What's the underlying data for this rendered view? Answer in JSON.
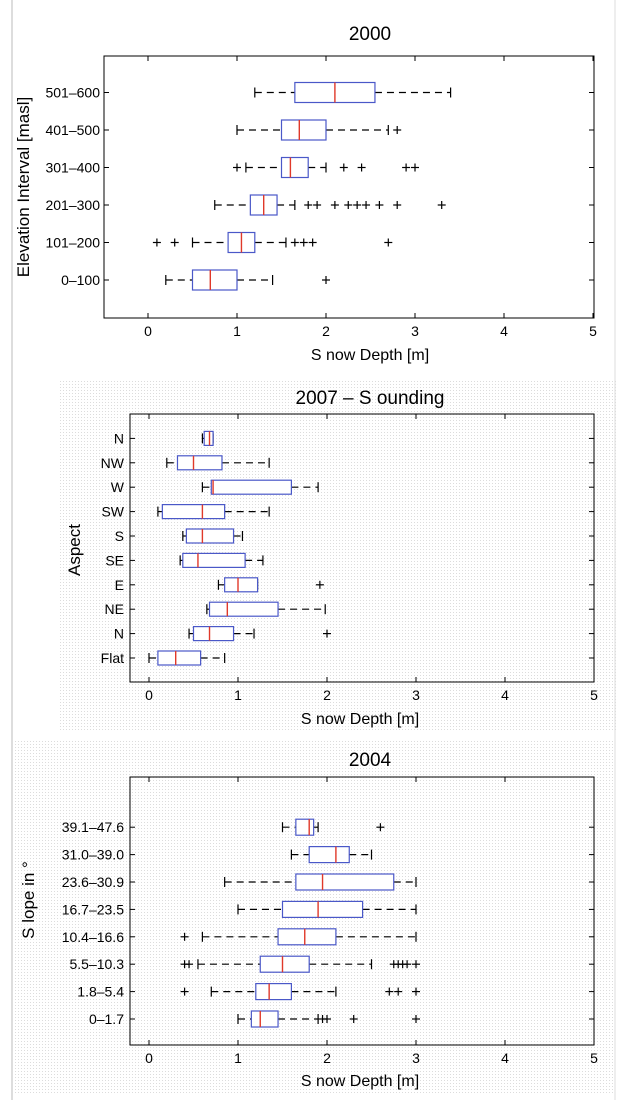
{
  "chart_data": [
    {
      "type": "box",
      "title": "2000",
      "xlabel": "S now Depth [m]",
      "ylabel": "Elevation Interval [masl]",
      "xlim": [
        -0.5,
        5
      ],
      "xticks": [
        0,
        1,
        2,
        3,
        4,
        5
      ],
      "categories": [
        "0–100",
        "101–200",
        "201–300",
        "301–400",
        "401–500",
        "501–600"
      ],
      "boxes": [
        {
          "category": "0–100",
          "whisker_low": 0.2,
          "q1": 0.5,
          "median": 0.7,
          "q3": 1.0,
          "whisker_high": 1.4,
          "outliers": [
            2.0
          ]
        },
        {
          "category": "101–200",
          "whisker_low": 0.5,
          "q1": 0.9,
          "median": 1.05,
          "q3": 1.2,
          "whisker_high": 1.55,
          "outliers": [
            0.1,
            0.3,
            1.65,
            1.75,
            1.85,
            2.7
          ]
        },
        {
          "category": "201–300",
          "whisker_low": 0.75,
          "q1": 1.15,
          "median": 1.3,
          "q3": 1.45,
          "whisker_high": 1.65,
          "outliers": [
            1.8,
            1.9,
            2.1,
            2.25,
            2.35,
            2.45,
            2.6,
            2.8,
            3.3
          ]
        },
        {
          "category": "301–400",
          "whisker_low": 1.1,
          "q1": 1.5,
          "median": 1.6,
          "q3": 1.8,
          "whisker_high": 2.0,
          "outliers": [
            1.0,
            2.2,
            2.4,
            2.9,
            3.0
          ]
        },
        {
          "category": "401–500",
          "whisker_low": 1.0,
          "q1": 1.5,
          "median": 1.7,
          "q3": 2.0,
          "whisker_high": 2.7,
          "outliers": [
            2.8
          ]
        },
        {
          "category": "501–600",
          "whisker_low": 1.2,
          "q1": 1.65,
          "median": 2.1,
          "q3": 2.55,
          "whisker_high": 3.4,
          "outliers": []
        }
      ]
    },
    {
      "type": "box",
      "title": "2007 – S ounding",
      "xlabel": "S now Depth [m]",
      "ylabel": "Aspect",
      "xlim": [
        -0.2,
        5
      ],
      "xticks": [
        0,
        1,
        2,
        3,
        4,
        5
      ],
      "categories": [
        "Flat",
        "N",
        "NE",
        "E",
        "SE",
        "S",
        "SW",
        "W",
        "NW",
        "N"
      ],
      "boxes": [
        {
          "category": "Flat",
          "whisker_low": 0.0,
          "q1": 0.1,
          "median": 0.3,
          "q3": 0.58,
          "whisker_high": 0.85,
          "outliers": []
        },
        {
          "category": "N",
          "whisker_low": 0.45,
          "q1": 0.5,
          "median": 0.68,
          "q3": 0.95,
          "whisker_high": 1.18,
          "outliers": [
            2.0
          ]
        },
        {
          "category": "NE",
          "whisker_low": 0.65,
          "q1": 0.68,
          "median": 0.88,
          "q3": 1.45,
          "whisker_high": 1.98,
          "outliers": []
        },
        {
          "category": "E",
          "whisker_low": 0.78,
          "q1": 0.85,
          "median": 1.0,
          "q3": 1.22,
          "whisker_high": 1.22,
          "outliers": [
            1.92
          ]
        },
        {
          "category": "SE",
          "whisker_low": 0.35,
          "q1": 0.38,
          "median": 0.55,
          "q3": 1.08,
          "whisker_high": 1.28,
          "outliers": []
        },
        {
          "category": "S",
          "whisker_low": 0.38,
          "q1": 0.42,
          "median": 0.6,
          "q3": 0.95,
          "whisker_high": 1.05,
          "outliers": []
        },
        {
          "category": "SW",
          "whisker_low": 0.1,
          "q1": 0.15,
          "median": 0.6,
          "q3": 0.85,
          "whisker_high": 1.35,
          "outliers": []
        },
        {
          "category": "W",
          "whisker_low": 0.6,
          "q1": 0.7,
          "median": 0.72,
          "q3": 1.6,
          "whisker_high": 1.9,
          "outliers": []
        },
        {
          "category": "NW",
          "whisker_low": 0.2,
          "q1": 0.32,
          "median": 0.5,
          "q3": 0.82,
          "whisker_high": 1.35,
          "outliers": []
        },
        {
          "category": "N",
          "whisker_low": 0.6,
          "q1": 0.62,
          "median": 0.68,
          "q3": 0.72,
          "whisker_high": 0.72,
          "outliers": []
        }
      ]
    },
    {
      "type": "box",
      "title": "2004",
      "xlabel": "S now Depth [m]",
      "ylabel": "S lope in °",
      "xlim": [
        -0.2,
        5
      ],
      "xticks": [
        0,
        1,
        2,
        3,
        4,
        5
      ],
      "categories": [
        "0–1.7",
        "1.8–5.4",
        "5.5–10.3",
        "10.4–16.6",
        "16.7–23.5",
        "23.6–30.9",
        "31.0–39.0",
        "39.1–47.6"
      ],
      "boxes": [
        {
          "category": "0–1.7",
          "whisker_low": 1.0,
          "q1": 1.15,
          "median": 1.25,
          "q3": 1.45,
          "whisker_high": 1.9,
          "outliers": [
            1.95,
            2.0,
            2.3,
            3.0
          ]
        },
        {
          "category": "1.8–5.4",
          "whisker_low": 0.7,
          "q1": 1.2,
          "median": 1.35,
          "q3": 1.6,
          "whisker_high": 2.1,
          "outliers": [
            0.4,
            2.7,
            2.8,
            3.0
          ]
        },
        {
          "category": "5.5–10.3",
          "whisker_low": 0.55,
          "q1": 1.25,
          "median": 1.5,
          "q3": 1.8,
          "whisker_high": 2.5,
          "outliers": [
            0.4,
            0.45,
            2.75,
            2.8,
            2.85,
            2.9,
            3.0
          ]
        },
        {
          "category": "10.4–16.6",
          "whisker_low": 0.6,
          "q1": 1.45,
          "median": 1.75,
          "q3": 2.1,
          "whisker_high": 3.0,
          "outliers": [
            0.4
          ]
        },
        {
          "category": "16.7–23.5",
          "whisker_low": 1.0,
          "q1": 1.5,
          "median": 1.9,
          "q3": 2.4,
          "whisker_high": 3.0,
          "outliers": []
        },
        {
          "category": "23.6–30.9",
          "whisker_low": 0.85,
          "q1": 1.65,
          "median": 1.95,
          "q3": 2.75,
          "whisker_high": 3.0,
          "outliers": []
        },
        {
          "category": "31.0–39.0",
          "whisker_low": 1.6,
          "q1": 1.8,
          "median": 2.1,
          "q3": 2.25,
          "whisker_high": 2.5,
          "outliers": []
        },
        {
          "category": "39.1–47.6",
          "whisker_low": 1.5,
          "q1": 1.65,
          "median": 1.8,
          "q3": 1.85,
          "whisker_high": 1.9,
          "outliers": [
            2.6
          ]
        }
      ]
    }
  ],
  "colors": {
    "box": "#4a58c8",
    "median": "#e0392a",
    "whisker": "#000000",
    "frame": "#000000"
  }
}
